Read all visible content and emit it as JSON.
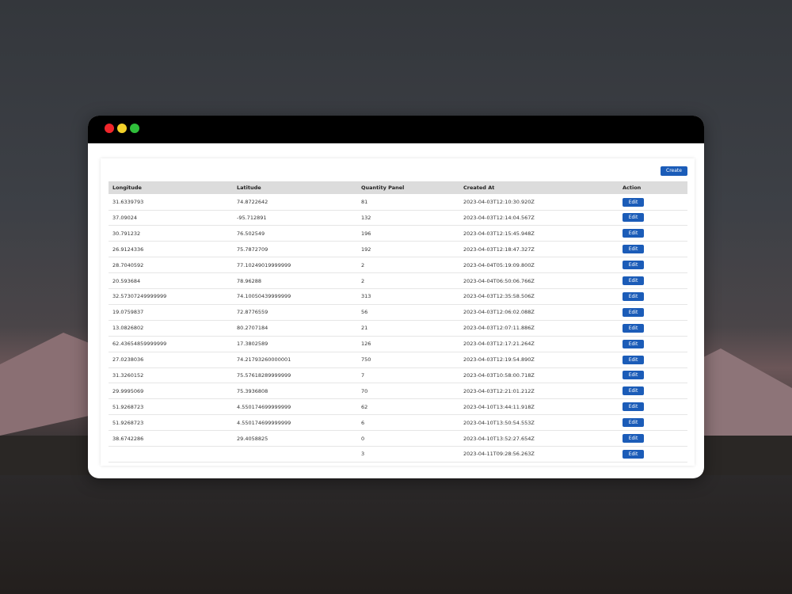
{
  "toolbar": {
    "create_button": "Create"
  },
  "table": {
    "headers": [
      "Longitude",
      "Latitude",
      "Quantity Panel",
      "Created At",
      "Action"
    ],
    "row_action": "Edit",
    "rows": [
      [
        "31.6339793",
        "74.8722642",
        "81",
        "2023-04-03T12:10:30.920Z"
      ],
      [
        "37.09024",
        "-95.712891",
        "132",
        "2023-04-03T12:14:04.567Z"
      ],
      [
        "30.791232",
        "76.502549",
        "196",
        "2023-04-03T12:15:45.948Z"
      ],
      [
        "26.9124336",
        "75.7872709",
        "192",
        "2023-04-03T12:18:47.327Z"
      ],
      [
        "28.7040592",
        "77.10249019999999",
        "2",
        "2023-04-04T05:19:09.800Z"
      ],
      [
        "20.593684",
        "78.96288",
        "2",
        "2023-04-04T06:50:06.766Z"
      ],
      [
        "32.57307249999999",
        "74.10050439999999",
        "313",
        "2023-04-03T12:35:58.506Z"
      ],
      [
        "19.0759837",
        "72.8776559",
        "56",
        "2023-04-03T12:06:02.088Z"
      ],
      [
        "13.0826802",
        "80.2707184",
        "21",
        "2023-04-03T12:07:11.886Z"
      ],
      [
        "62.43654859999999",
        "17.3802589",
        "126",
        "2023-04-03T12:17:21.264Z"
      ],
      [
        "27.0238036",
        "74.21793260000001",
        "750",
        "2023-04-03T12:19:54.890Z"
      ],
      [
        "31.3260152",
        "75.57618289999999",
        "7",
        "2023-04-03T10:58:00.718Z"
      ],
      [
        "29.9995069",
        "75.3936808",
        "70",
        "2023-04-03T12:21:01.212Z"
      ],
      [
        "51.9268723",
        "4.550174699999999",
        "62",
        "2023-04-10T13:44:11.918Z"
      ],
      [
        "51.9268723",
        "4.550174699999999",
        "6",
        "2023-04-10T13:50:54.553Z"
      ],
      [
        "38.6742286",
        "29.4058825",
        "0",
        "2023-04-10T13:52:27.654Z"
      ],
      [
        null,
        null,
        "3",
        "2023-04-11T09:28:56.263Z"
      ]
    ]
  }
}
